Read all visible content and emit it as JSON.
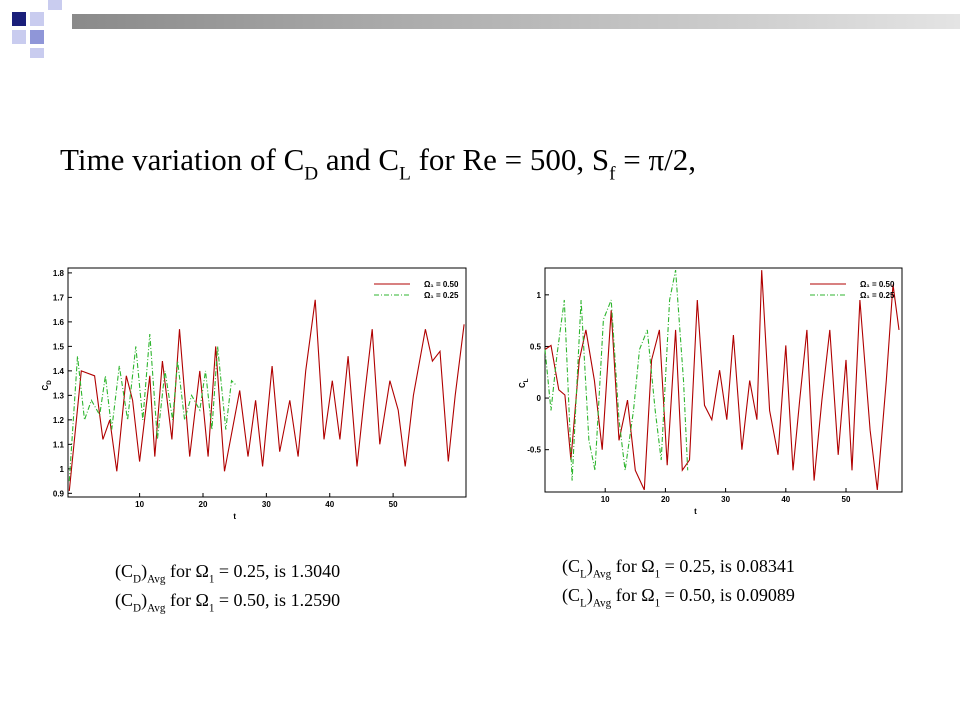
{
  "title": [
    "Time variation of C",
    "D",
    " and C",
    "L",
    " for Re = 500, S",
    "f",
    " = π/2,"
  ],
  "chart_data": [
    {
      "type": "line",
      "x_label": "t",
      "y_label": [
        "C",
        "D"
      ],
      "xlim": [
        -1.3,
        61.5
      ],
      "xticks": [
        10,
        20,
        30,
        40,
        50
      ],
      "ylim": [
        0.885,
        1.82
      ],
      "yticks": [
        0.9,
        1,
        1.1,
        1.2,
        1.3,
        1.4,
        1.5,
        1.6,
        1.7,
        1.8
      ],
      "legend": "upper right",
      "series": [
        {
          "name": "Ω₁ = 0.50",
          "color": "#b00000",
          "x": [
            -1.1,
            0.8,
            2.9,
            4.2,
            5.3,
            6.4,
            7.9,
            8.9,
            10.0,
            11.6,
            12.4,
            13.6,
            15.1,
            16.3,
            17.9,
            19.5,
            20.8,
            22.0,
            23.4,
            25.8,
            27.1,
            28.3,
            29.4,
            30.9,
            32.1,
            33.7,
            35.0,
            36.2,
            37.7,
            39.1,
            40.4,
            41.6,
            42.9,
            44.3,
            45.4,
            46.7,
            47.9,
            49.5,
            50.8,
            51.9,
            53.2,
            55.1,
            56.2,
            57.4,
            58.7,
            59.8,
            61.2
          ],
          "values": [
            0.91,
            1.4,
            1.38,
            1.12,
            1.2,
            0.99,
            1.38,
            1.28,
            1.03,
            1.38,
            1.05,
            1.44,
            1.12,
            1.57,
            1.05,
            1.4,
            1.05,
            1.5,
            0.99,
            1.32,
            1.05,
            1.28,
            1.01,
            1.42,
            1.07,
            1.28,
            1.05,
            1.4,
            1.69,
            1.12,
            1.36,
            1.12,
            1.46,
            1.01,
            1.28,
            1.57,
            1.1,
            1.36,
            1.24,
            1.01,
            1.3,
            1.57,
            1.44,
            1.48,
            1.03,
            1.3,
            1.59
          ]
        },
        {
          "name": "Ω₁ = 0.25",
          "color": "#2fb52f",
          "x": [
            -1.1,
            0.2,
            1.3,
            2.4,
            3.7,
            4.6,
            5.6,
            6.8,
            8.1,
            9.4,
            10.5,
            11.6,
            12.8,
            14.0,
            15.2,
            16.0,
            17.1,
            18.2,
            19.5,
            20.4,
            21.4,
            22.3,
            23.6,
            24.5,
            25.3
          ],
          "values": [
            0.95,
            1.46,
            1.2,
            1.28,
            1.22,
            1.38,
            1.16,
            1.42,
            1.2,
            1.5,
            1.2,
            1.55,
            1.12,
            1.4,
            1.2,
            1.44,
            1.2,
            1.3,
            1.24,
            1.4,
            1.16,
            1.5,
            1.16,
            1.36,
            1.34
          ]
        }
      ],
      "captions": [
        [
          "(C",
          "D",
          ")",
          "Avg",
          " for Ω",
          "1",
          " = 0.25, is 1.3040"
        ],
        [
          "(C",
          "D",
          ")",
          "Avg",
          " for Ω",
          "1",
          " = 0.50, is 1.2590"
        ]
      ]
    },
    {
      "type": "line",
      "x_label": "t",
      "y_label": [
        "C",
        "L"
      ],
      "xlim": [
        0,
        59.3
      ],
      "xticks": [
        10,
        20,
        30,
        40,
        50
      ],
      "ylim": [
        -0.91,
        1.26
      ],
      "yticks": [
        -0.5,
        0,
        0.5,
        1
      ],
      "legend": "upper right",
      "series": [
        {
          "name": "Ω₁ = 0.50",
          "color": "#b00000",
          "x": [
            0,
            1.0,
            2.3,
            3.3,
            4.3,
            5.7,
            6.8,
            8.2,
            9.5,
            11,
            12.3,
            13.7,
            15,
            16.5,
            17.7,
            19,
            20.3,
            21.7,
            22.8,
            24,
            25.3,
            26.5,
            27.7,
            29,
            30.2,
            31.3,
            32.7,
            34,
            35.2,
            36,
            37.3,
            38.7,
            40,
            41.2,
            42.3,
            43.5,
            44.7,
            46,
            47.3,
            48.7,
            50,
            51,
            52.3,
            54,
            55.2,
            56.7,
            57.8,
            58.8
          ],
          "values": [
            0.47,
            0.51,
            0.08,
            0.03,
            -0.6,
            0.37,
            0.66,
            0.17,
            -0.5,
            0.85,
            -0.41,
            -0.02,
            -0.7,
            -0.89,
            0.37,
            0.66,
            -0.65,
            0.66,
            -0.7,
            -0.6,
            0.95,
            -0.07,
            -0.21,
            0.27,
            -0.21,
            0.61,
            -0.5,
            0.17,
            -0.21,
            1.24,
            -0.12,
            -0.55,
            0.51,
            -0.7,
            -0.02,
            0.66,
            -0.8,
            -0.02,
            0.66,
            -0.55,
            0.37,
            -0.7,
            0.95,
            -0.31,
            -0.89,
            0.17,
            1.1,
            0.66
          ]
        },
        {
          "name": "Ω₁ = 0.25",
          "color": "#2fb52f",
          "x": [
            0,
            1.0,
            2.0,
            3.2,
            4.5,
            6,
            7.3,
            8.3,
            9.7,
            11,
            12.3,
            13.3,
            14.7,
            15.7,
            17,
            18.3,
            19.3,
            20.7,
            21.7,
            23,
            23.7
          ],
          "values": [
            0.47,
            -0.12,
            0.42,
            0.95,
            -0.8,
            0.95,
            -0.41,
            -0.7,
            0.76,
            0.95,
            -0.21,
            -0.7,
            -0.12,
            0.47,
            0.66,
            -0.12,
            -0.6,
            0.95,
            1.24,
            0.17,
            -0.7
          ]
        }
      ],
      "captions": [
        [
          "(C",
          "L",
          ")",
          "Avg",
          " for Ω",
          "1",
          " = 0.25, is 0.08341"
        ],
        [
          "(C",
          "L",
          ")",
          "Avg",
          " for Ω",
          "1",
          " = 0.50, is 0.09089"
        ]
      ]
    }
  ]
}
